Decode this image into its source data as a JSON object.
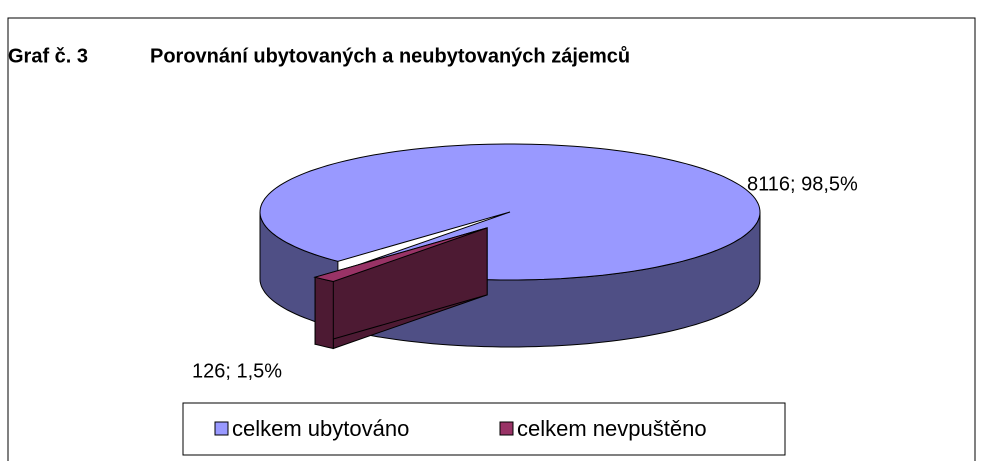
{
  "chart_data": {
    "type": "pie3d",
    "title_number": "Graf č. 3",
    "title": "Porovnání ubytovaných a neubytovaných zájemců",
    "categories": [
      "celkem ubytováno",
      "celkem nevpuštěno"
    ],
    "values": [
      8116,
      126
    ],
    "value_labels": [
      "8116; 98,5%",
      "126; 1,5%"
    ],
    "colors": [
      "#9999ff",
      "#993366"
    ],
    "side_colors": [
      "#4f4f85",
      "#4d1a33"
    ],
    "legend": "bottom"
  }
}
